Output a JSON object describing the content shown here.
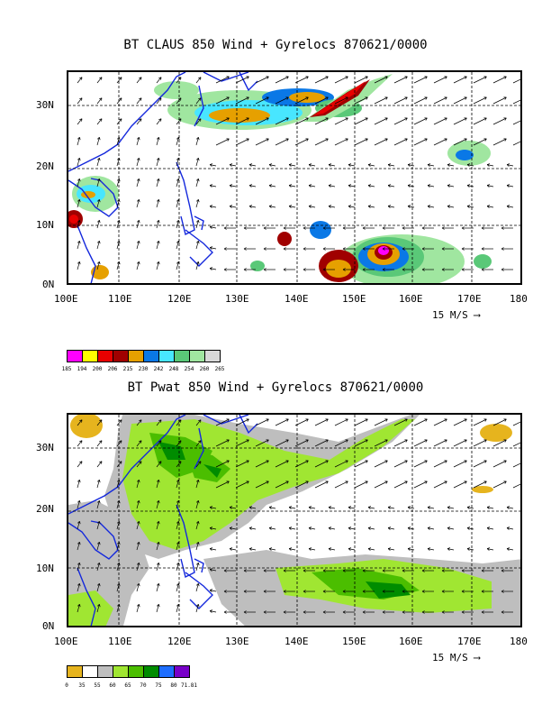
{
  "colors": {
    "coast": "#1428dc"
  },
  "panels": [
    {
      "title": "BT CLAUS 850 Wind + Gyrelocs 870621/0000",
      "lat_labels": [
        "30N",
        "20N",
        "10N",
        "0N"
      ],
      "lon_labels": [
        "100E",
        "110E",
        "120E",
        "130E",
        "140E",
        "150E",
        "160E",
        "170E",
        "180"
      ],
      "vector_scale": "15 M/S",
      "legend": {
        "values": [
          "185",
          "194",
          "200",
          "206",
          "215",
          "230",
          "242",
          "248",
          "254",
          "260",
          "265"
        ],
        "colors": [
          "#ff00ff",
          "#ffff00",
          "#e80000",
          "#a00000",
          "#e6a000",
          "#0a78e6",
          "#48e6ff",
          "#5ac878",
          "#a0e6a0",
          "#d8d8d8"
        ]
      }
    },
    {
      "title": "BT Pwat 850 Wind + Gyrelocs 870621/0000",
      "lat_labels": [
        "30N",
        "20N",
        "10N",
        "0N"
      ],
      "lon_labels": [
        "100E",
        "110E",
        "120E",
        "130E",
        "140E",
        "150E",
        "160E",
        "170E",
        "180"
      ],
      "vector_scale": "15 M/S",
      "legend": {
        "values": [
          "0",
          "35",
          "55",
          "60",
          "65",
          "70",
          "75",
          "80",
          "71.81"
        ],
        "colors": [
          "#e6b41e",
          "#ffffff",
          "#bebebe",
          "#a0e632",
          "#4bbe00",
          "#008c00",
          "#1e6eff",
          "#7800c8"
        ]
      }
    }
  ]
}
